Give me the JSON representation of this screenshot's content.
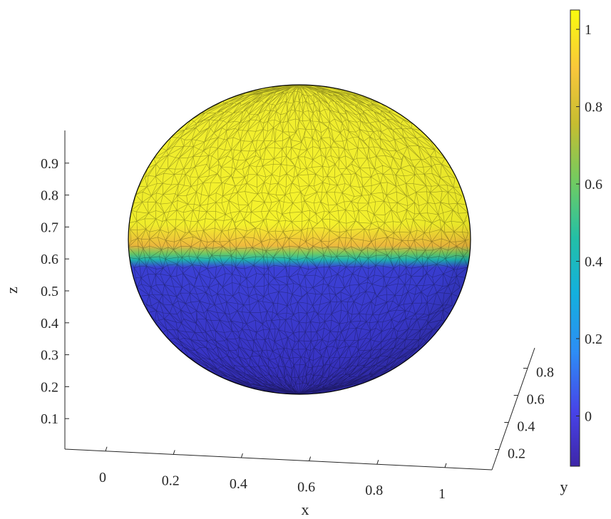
{
  "chart_data": {
    "type": "surface",
    "title": "",
    "description_of_data": "Scalar field on a unit-diameter sphere centered at (0.5, 0.5, 0.5); value ~1 above z≈0.62, ~-0.12 below z≈0.57, sharp transition band near z≈0.6",
    "axes": {
      "x": {
        "label": "x",
        "ticks": [
          0,
          0.2,
          0.4,
          0.6,
          0.8,
          1
        ],
        "tick_labels": [
          "0",
          "0.2",
          "0.4",
          "0.6",
          "0.8",
          "1"
        ],
        "range": [
          -0.1,
          1.1
        ]
      },
      "y": {
        "label": "y",
        "ticks": [
          0.2,
          0.4,
          0.6,
          0.8
        ],
        "tick_labels": [
          "0.2",
          "0.4",
          "0.6",
          "0.8"
        ],
        "range": [
          0.05,
          0.95
        ]
      },
      "z": {
        "label": "z",
        "ticks": [
          0.1,
          0.2,
          0.3,
          0.4,
          0.5,
          0.6,
          0.7,
          0.8,
          0.9
        ],
        "tick_labels": [
          "0.1",
          "0.2",
          "0.3",
          "0.4",
          "0.5",
          "0.6",
          "0.7",
          "0.8",
          "0.9"
        ],
        "range": [
          0,
          1
        ]
      }
    },
    "sphere": {
      "center": [
        0.5,
        0.5,
        0.5
      ],
      "radius": 0.5
    },
    "field": {
      "upper_value": 1.0,
      "lower_value": -0.12,
      "interface_z": 0.6,
      "interface_band": [
        0.57,
        0.63
      ]
    },
    "colorbar": {
      "range": [
        -0.13,
        1.05
      ],
      "ticks": [
        0,
        0.2,
        0.4,
        0.6,
        0.8,
        1
      ],
      "tick_labels": [
        "0",
        "0.2",
        "0.4",
        "0.6",
        "0.8",
        "1"
      ],
      "colormap": "parula"
    },
    "mesh": "triangulated, black edges",
    "grid": false,
    "legend": "none"
  },
  "colors": {
    "upper": "#f9fb0e",
    "lower": "#3e37d6",
    "band_orange": "#f0ba3c",
    "band_teal": "#1db6b0",
    "edge": "#000000"
  }
}
